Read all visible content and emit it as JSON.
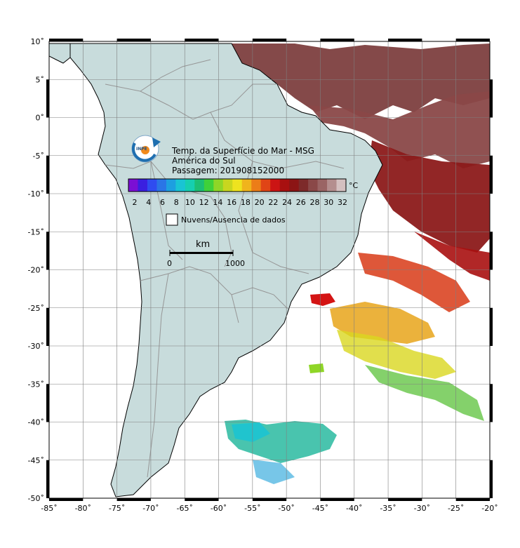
{
  "title_lines": [
    "Temp. da Superfície do Mar - MSG",
    "América do Sul",
    "Passagem: 201908152000"
  ],
  "logo_text": "INPE",
  "colorbar": {
    "unit": "°C",
    "ticks": [
      "2",
      "4",
      "6",
      "8",
      "10",
      "12",
      "14",
      "16",
      "18",
      "20",
      "22",
      "24",
      "26",
      "28",
      "30",
      "32"
    ],
    "colors": [
      "#7b0fd4",
      "#3a1fe0",
      "#2f4cf0",
      "#2a75e6",
      "#1d9fe0",
      "#19c4d4",
      "#16cfb0",
      "#1cbf74",
      "#3fd13a",
      "#8fd627",
      "#c8d61f",
      "#eee31f",
      "#f0b41c",
      "#ec7d18",
      "#e04416",
      "#cc1414",
      "#a81010",
      "#8c1515",
      "#7d2a2a",
      "#8a4848",
      "#9a6464",
      "#b48e8e",
      "#d4c0c0"
    ],
    "colors_color_hint": "#7b0fd4"
  },
  "legend": {
    "label": "Nuvens/Ausencia de dados",
    "swatch_color": "#ffffff"
  },
  "scale_bar": {
    "unit": "km",
    "start": "0",
    "end": "1000"
  },
  "axes": {
    "lon_labels": [
      "-85˚",
      "-80˚",
      "-75˚",
      "-70˚",
      "-65˚",
      "-60˚",
      "-55˚",
      "-50˚",
      "-45˚",
      "-40˚",
      "-35˚",
      "-30˚",
      "-25˚",
      "-20˚"
    ],
    "lat_labels": [
      "10˚",
      "5˚",
      "0˚",
      "-5˚",
      "-10˚",
      "-15˚",
      "-20˚",
      "-25˚",
      "-30˚",
      "-35˚",
      "-40˚",
      "-45˚",
      "-50˚"
    ],
    "lon_range": [
      -85,
      -20
    ],
    "lat_range": [
      -50,
      10
    ]
  },
  "colors": {
    "land": "#c8dcdc",
    "ocean": "#ffffff",
    "grid": "#808080",
    "border": "#969696"
  }
}
